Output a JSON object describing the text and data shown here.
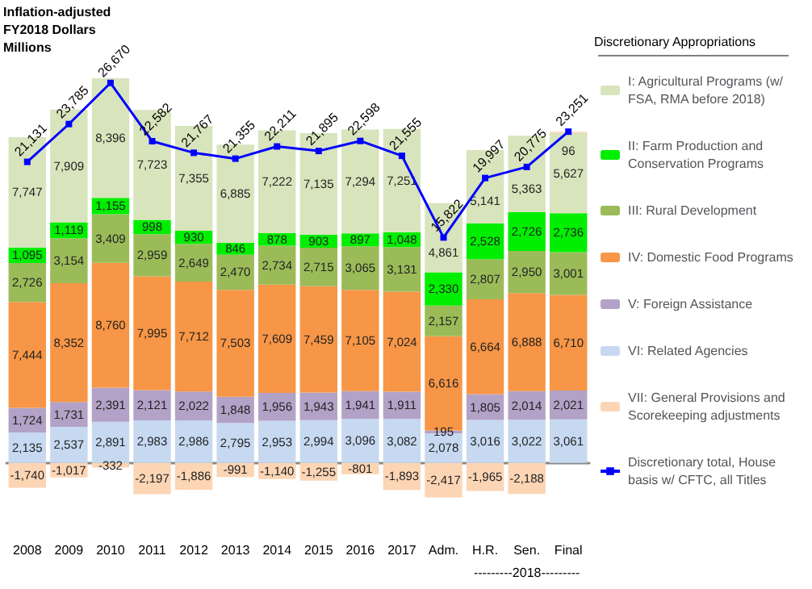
{
  "chart_data": {
    "type": "bar",
    "stacked": true,
    "ylabel": "Inflation-adjusted\nFY2018 Dollars\nMillions",
    "legend_title": "Discretionary Appropriations",
    "legend": "right",
    "categories": [
      "2008",
      "2009",
      "2010",
      "2011",
      "2012",
      "2013",
      "2014",
      "2015",
      "2016",
      "2017",
      "Adm.",
      "H.R.",
      "Sen.",
      "Final"
    ],
    "annotations": [
      "---------2018---------"
    ],
    "series": [
      {
        "name": "VI: Related Agencies",
        "color": "#c6d9f1",
        "values": [
          2135,
          2537,
          2891,
          2983,
          2986,
          2795,
          2953,
          2994,
          3096,
          3082,
          2078,
          3016,
          3022,
          3061
        ],
        "value_labels": [
          "2,135",
          "2,537",
          "2,891",
          "2,983",
          "2,986",
          "2,795",
          "2,953",
          "2,994",
          "3,096",
          "3,082",
          "2,078",
          "3,016",
          "3,022",
          "3,061"
        ]
      },
      {
        "name": "V: Foreign Assistance",
        "color": "#b3a2c7",
        "values": [
          1724,
          1731,
          2391,
          2121,
          2022,
          1848,
          1956,
          1943,
          1941,
          1911,
          195,
          1805,
          2014,
          2021
        ],
        "value_labels": [
          "1,724",
          "1,731",
          "2,391",
          "2,121",
          "2,022",
          "1,848",
          "1,956",
          "1,943",
          "1,941",
          "1,911",
          "195",
          "1,805",
          "2,014",
          "2,021"
        ]
      },
      {
        "name": "IV: Domestic Food Programs",
        "color": "#f79646",
        "values": [
          7444,
          8352,
          8760,
          7995,
          7712,
          7503,
          7609,
          7459,
          7105,
          7024,
          6616,
          6664,
          6888,
          6710
        ],
        "value_labels": [
          "7,444",
          "8,352",
          "8,760",
          "7,995",
          "7,712",
          "7,503",
          "7,609",
          "7,459",
          "7,105",
          "7,024",
          "6,616",
          "6,664",
          "6,888",
          "6,710"
        ]
      },
      {
        "name": "III: Rural Development",
        "color": "#9bbb59",
        "values": [
          2726,
          3154,
          3409,
          2959,
          2649,
          2470,
          2734,
          2715,
          3065,
          3131,
          2157,
          2807,
          2950,
          3001
        ],
        "value_labels": [
          "2,726",
          "3,154",
          "3,409",
          "2,959",
          "2,649",
          "2,470",
          "2,734",
          "2,715",
          "3,065",
          "3,131",
          "2,157",
          "2,807",
          "2,950",
          "3,001"
        ]
      },
      {
        "name": "II: Farm Production and Conservation Programs",
        "color": "#00ee00",
        "values": [
          1095,
          1119,
          1155,
          998,
          930,
          846,
          878,
          903,
          897,
          1048,
          2330,
          2528,
          2726,
          2736
        ],
        "value_labels": [
          "1,095",
          "1,119",
          "1,155",
          "998",
          "930",
          "846",
          "878",
          "903",
          "897",
          "1,048",
          "2,330",
          "2,528",
          "2,726",
          "2,736"
        ]
      },
      {
        "name": "I: Agricultural Programs (w/ FSA, RMA before 2018)",
        "color": "#d8e4bc",
        "values": [
          7747,
          7909,
          8396,
          7723,
          7355,
          6885,
          7222,
          7135,
          7294,
          7251,
          4861,
          5141,
          5363,
          5627
        ],
        "value_labels": [
          "7,747",
          "7,909",
          "8,396",
          "7,723",
          "7,355",
          "6,885",
          "7,222",
          "7,135",
          "7,294",
          "7,251",
          "4,861",
          "5,141",
          "5,363",
          "5,627"
        ]
      },
      {
        "name": "VII: General Provisions and Scorekeeping adjustments",
        "color": "#fcd5b5",
        "values": [
          -1740,
          -1017,
          -332,
          -2197,
          -1886,
          -991,
          -1140,
          -1255,
          -801,
          -1893,
          -2417,
          -1965,
          -2188,
          96
        ],
        "value_labels": [
          "-1,740",
          "-1,017",
          "-332",
          "-2,197",
          "-1,886",
          "-991",
          "-1,140",
          "-1,255",
          "-801",
          "-1,893",
          "-2,417",
          "-1,965",
          "-2,188",
          "96"
        ]
      },
      {
        "name": "Discretionary total, House basis w/ CFTC, all Titles",
        "type": "line",
        "color": "#0000ff",
        "marker": "square",
        "values": [
          21131,
          23785,
          26670,
          22582,
          21767,
          21355,
          22211,
          21895,
          22598,
          21555,
          15822,
          19997,
          20775,
          23251
        ],
        "value_labels": [
          "21,131",
          "23,785",
          "26,670",
          "22,582",
          "21,767",
          "21,355",
          "22,211",
          "21,895",
          "22,598",
          "21,555",
          "15,822",
          "19,997",
          "20,775",
          "23,251"
        ]
      }
    ]
  }
}
